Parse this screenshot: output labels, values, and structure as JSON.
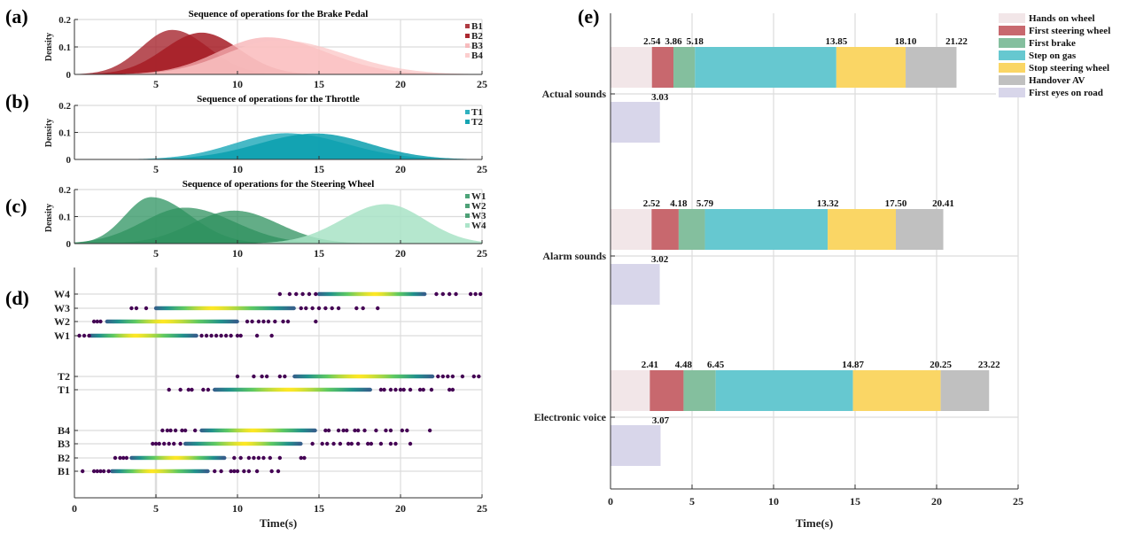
{
  "chart_data": [
    {
      "id": "a",
      "panel_label": "(a)",
      "type": "area",
      "title": "Sequence of operations for the Brake Pedal",
      "xlabel": "",
      "ylabel": "Density",
      "xlim": [
        0,
        25
      ],
      "ylim": [
        0,
        0.2
      ],
      "xticks": [
        "5",
        "10",
        "15",
        "20",
        "25"
      ],
      "yticks": [
        "0",
        "0.1",
        "0.2"
      ],
      "legend_position": "top-right",
      "series": [
        {
          "name": "B1",
          "color": "#a6262e",
          "alpha": 0.8,
          "peak_x": 6.0,
          "peak_y": 0.162,
          "spread_left": 1.9,
          "spread_right": 2.2
        },
        {
          "name": "B2",
          "color": "#a61c24",
          "alpha": 0.85,
          "peak_x": 7.8,
          "peak_y": 0.152,
          "spread_left": 2.3,
          "spread_right": 2.3
        },
        {
          "name": "B3",
          "color": "#f7b0b3",
          "alpha": 0.75,
          "peak_x": 11.8,
          "peak_y": 0.135,
          "spread_left": 3.0,
          "spread_right": 3.6
        },
        {
          "name": "B4",
          "color": "#fbc5c6",
          "alpha": 0.75,
          "peak_x": 12.5,
          "peak_y": 0.125,
          "spread_left": 3.2,
          "spread_right": 4.0
        }
      ]
    },
    {
      "id": "b",
      "panel_label": "(b)",
      "type": "area",
      "title": "Sequence of operations for the Throttle",
      "xlabel": "",
      "ylabel": "Density",
      "xlim": [
        0,
        25
      ],
      "ylim": [
        0,
        0.2
      ],
      "xticks": [
        "5",
        "10",
        "15",
        "20",
        "25"
      ],
      "yticks": [
        "0",
        "0.1",
        "0.2"
      ],
      "legend_position": "top-right",
      "series": [
        {
          "name": "T1",
          "color": "#1aa8b8",
          "alpha": 0.8,
          "peak_x": 13.0,
          "peak_y": 0.097,
          "spread_left": 3.2,
          "spread_right": 3.6
        },
        {
          "name": "T2",
          "color": "#0a9fae",
          "alpha": 0.85,
          "peak_x": 14.8,
          "peak_y": 0.096,
          "spread_left": 3.5,
          "spread_right": 3.3
        }
      ]
    },
    {
      "id": "c",
      "panel_label": "(c)",
      "type": "area",
      "title": "Sequence of operations for the Steering Wheel",
      "xlabel": "",
      "ylabel": "Density",
      "xlim": [
        0,
        25
      ],
      "ylim": [
        0,
        0.2
      ],
      "xticks": [
        "5",
        "10",
        "15",
        "20",
        "25"
      ],
      "yticks": [
        "0",
        "0.1",
        "0.2"
      ],
      "legend_position": "top-right",
      "series": [
        {
          "name": "W1",
          "color": "#3a9a6a",
          "alpha": 0.8,
          "peak_x": 4.7,
          "peak_y": 0.172,
          "spread_left": 1.6,
          "spread_right": 2.4
        },
        {
          "name": "W2",
          "color": "#2f915f",
          "alpha": 0.75,
          "peak_x": 6.8,
          "peak_y": 0.133,
          "spread_left": 2.6,
          "spread_right": 3.0
        },
        {
          "name": "W3",
          "color": "#2f915f",
          "alpha": 0.75,
          "peak_x": 9.8,
          "peak_y": 0.122,
          "spread_left": 2.6,
          "spread_right": 2.7
        },
        {
          "name": "W4",
          "color": "#a8e3c6",
          "alpha": 0.85,
          "peak_x": 19.1,
          "peak_y": 0.146,
          "spread_left": 2.7,
          "spread_right": 2.4
        }
      ]
    },
    {
      "id": "d",
      "panel_label": "(d)",
      "type": "scatter",
      "title": "",
      "xlabel": "Time(s)",
      "ylabel": "",
      "xlim": [
        0,
        25
      ],
      "xticks": [
        "0",
        "5",
        "10",
        "15",
        "20",
        "25"
      ],
      "categories": [
        "B1",
        "B2",
        "B3",
        "B4",
        "T1",
        "T2",
        "W1",
        "W2",
        "W3",
        "W4"
      ],
      "colormap": "viridis (density-colored points)",
      "rows": [
        {
          "name": "B1",
          "dense_range": [
            2.3,
            8.2
          ],
          "peak": 4.8,
          "outliers": [
            0.5,
            1.2,
            1.4,
            1.6,
            1.8,
            2.1,
            8.6,
            9.0,
            9.6,
            9.8,
            10.0,
            10.4,
            10.7,
            11.2,
            12.1,
            12.5
          ]
        },
        {
          "name": "B2",
          "dense_range": [
            3.5,
            9.2
          ],
          "peak": 6.3,
          "outliers": [
            2.5,
            2.8,
            3.0,
            3.2,
            9.8,
            10.2,
            10.7,
            11.0,
            11.3,
            11.6,
            12.0,
            12.6,
            13.9,
            14.1
          ]
        },
        {
          "name": "B3",
          "dense_range": [
            6.8,
            13.9
          ],
          "peak": 10.5,
          "outliers": [
            4.8,
            5.0,
            5.2,
            5.5,
            5.8,
            6.1,
            6.5,
            14.6,
            15.2,
            15.5,
            15.9,
            16.3,
            16.8,
            17.0,
            17.4,
            18.0,
            18.2,
            18.8,
            19.4,
            19.7,
            20.6
          ]
        },
        {
          "name": "B4",
          "dense_range": [
            7.8,
            14.8
          ],
          "peak": 11.0,
          "outliers": [
            5.4,
            5.7,
            5.9,
            6.2,
            6.6,
            6.8,
            7.4,
            15.4,
            15.6,
            16.2,
            16.5,
            16.7,
            17.2,
            17.4,
            17.8,
            18.5,
            19.1,
            19.4,
            20.1,
            20.4,
            21.8
          ]
        },
        {
          "name": "T1",
          "dense_range": [
            8.6,
            18.2
          ],
          "peak": 13.2,
          "outliers": [
            5.8,
            6.5,
            7.0,
            7.2,
            7.9,
            8.2,
            18.8,
            19.0,
            19.4,
            19.7,
            20.0,
            20.2,
            20.6,
            21.2,
            21.4,
            21.9,
            23.0,
            23.2
          ]
        },
        {
          "name": "T2",
          "dense_range": [
            13.5,
            22.0
          ],
          "peak": 17.5,
          "outliers": [
            10.0,
            11.0,
            11.5,
            11.8,
            12.6,
            12.9,
            22.3,
            22.6,
            22.9,
            23.2,
            23.8,
            24.5,
            24.8
          ]
        },
        {
          "name": "W1",
          "dense_range": [
            1.0,
            7.5
          ],
          "peak": 3.8,
          "outliers": [
            0.3,
            0.6,
            0.9,
            7.8,
            8.1,
            8.4,
            8.7,
            9.0,
            9.3,
            9.6,
            10.0,
            10.2,
            11.2,
            12.1
          ]
        },
        {
          "name": "W2",
          "dense_range": [
            2.0,
            10.0
          ],
          "peak": 5.5,
          "outliers": [
            1.2,
            1.4,
            1.6,
            10.6,
            10.9,
            11.3,
            11.6,
            11.9,
            12.3,
            12.8,
            13.1,
            14.8
          ]
        },
        {
          "name": "W3",
          "dense_range": [
            5.0,
            13.5
          ],
          "peak": 8.5,
          "outliers": [
            3.5,
            3.8,
            4.4,
            13.9,
            14.2,
            14.6,
            15.0,
            15.4,
            15.8,
            16.2,
            17.3,
            17.7,
            18.6
          ]
        },
        {
          "name": "W4",
          "dense_range": [
            15.0,
            21.5
          ],
          "peak": 18.5,
          "outliers": [
            12.6,
            13.2,
            13.6,
            14.0,
            14.4,
            14.8,
            22.2,
            22.6,
            23.0,
            23.4,
            24.3,
            24.6,
            24.9
          ]
        }
      ]
    },
    {
      "id": "e",
      "panel_label": "(e)",
      "type": "bar",
      "subtype": "stacked-horizontal",
      "title": "",
      "xlabel": "Time(s)",
      "ylabel": "",
      "xlim": [
        0,
        25
      ],
      "xticks": [
        "0",
        "5",
        "10",
        "15",
        "20",
        "25"
      ],
      "legend_position": "top-right",
      "segments": [
        {
          "name": "Hands on wheel",
          "color": "#f2e6e8"
        },
        {
          "name": "First steering wheel",
          "color": "#c8686e"
        },
        {
          "name": "First brake",
          "color": "#84bf9e"
        },
        {
          "name": "Step on gas",
          "color": "#66c8d0"
        },
        {
          "name": "Stop steering wheel",
          "color": "#fad665"
        },
        {
          "name": "Handover AV",
          "color": "#c0c0c0"
        },
        {
          "name": "First eyes on road",
          "color": "#d8d6ea"
        }
      ],
      "categories": [
        "Actual sounds",
        "Alarm sounds",
        "Electronic voice"
      ],
      "groups": [
        {
          "name": "Actual sounds",
          "cumulative": [
            2.54,
            3.86,
            5.18,
            13.85,
            18.1,
            21.22
          ],
          "labels": [
            "2.54",
            "3.86",
            "5.18",
            "13.85",
            "18.10",
            "21.22"
          ],
          "eyes_on_road": 3.03,
          "eyes_label": "3.03"
        },
        {
          "name": "Alarm sounds",
          "cumulative": [
            2.52,
            4.18,
            5.79,
            13.32,
            17.5,
            20.41
          ],
          "labels": [
            "2.52",
            "4.18",
            "5.79",
            "13.32",
            "17.50",
            "20.41"
          ],
          "eyes_on_road": 3.02,
          "eyes_label": "3.02"
        },
        {
          "name": "Electronic voice",
          "cumulative": [
            2.41,
            4.48,
            6.45,
            14.87,
            20.25,
            23.22
          ],
          "labels": [
            "2.41",
            "4.48",
            "6.45",
            "14.87",
            "20.25",
            "23.22"
          ],
          "eyes_on_road": 3.07,
          "eyes_label": "3.07"
        }
      ]
    }
  ]
}
